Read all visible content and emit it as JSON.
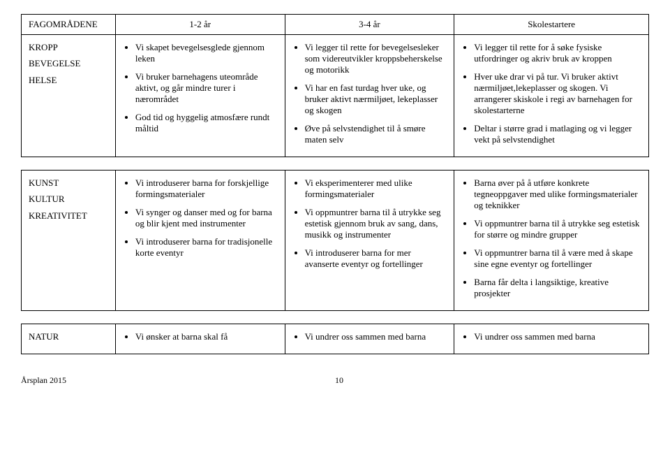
{
  "header": {
    "cat": "FAGOMRÅDENE",
    "colA": "1-2 år",
    "colB": "3-4 år",
    "colC": "Skolestartere"
  },
  "rows": [
    {
      "category_lines": [
        "KROPP",
        "BEVEGELSE",
        "HELSE"
      ],
      "colA": [
        "Vi skapet bevegelsesglede gjennom leken",
        "Vi bruker barnehagens uteområde aktivt, og går mindre turer i nærområdet",
        "God tid og hyggelig atmosfære rundt måltid"
      ],
      "colB": [
        "Vi legger til rette for bevegelsesleker som videreutvikler kroppsbeherskelse og motorikk",
        "Vi har en fast turdag hver uke, og bruker aktivt nærmiljøet, lekeplasser og skogen",
        "Øve på selvstendighet til å smøre maten selv"
      ],
      "colC": [
        "Vi legger til rette for å søke fysiske utfordringer og akriv bruk av kroppen",
        "Hver uke drar vi på tur. Vi bruker aktivt nærmiljøet,lekeplasser og skogen. Vi arrangerer skiskole i regi av barnehagen for skolestarterne",
        "Deltar i større grad i matlaging og vi legger vekt på selvstendighet"
      ]
    },
    {
      "category_lines": [
        "KUNST",
        "KULTUR",
        "KREATIVITET"
      ],
      "colA": [
        "Vi introduserer barna for forskjellige formingsmaterialer",
        "Vi synger og danser med og for barna og blir kjent med instrumenter",
        "Vi introduserer barna for tradisjonelle korte eventyr"
      ],
      "colB": [
        "Vi eksperimenterer med ulike formingsmaterialer",
        "Vi oppmuntrer barna til å utrykke seg estetisk gjennom bruk av sang, dans, musikk og instrumenter",
        "Vi introduserer barna for mer avanserte eventyr og fortellinger"
      ],
      "colC": [
        "Barna øver på å utføre konkrete tegneoppgaver med ulike formingsmaterialer og teknikker",
        "Vi oppmuntrer barna til å utrykke seg estetisk for større og mindre grupper",
        "Vi oppmuntrer barna til å være med å skape sine egne eventyr og fortellinger",
        "Barna får delta i langsiktige, kreative prosjekter"
      ]
    },
    {
      "category_lines": [
        "NATUR"
      ],
      "colA": [
        "Vi ønsker at barna skal få"
      ],
      "colB": [
        "Vi undrer oss sammen med barna"
      ],
      "colC": [
        "Vi undrer oss sammen med barna"
      ]
    }
  ],
  "footer": {
    "left": "Årsplan 2015",
    "page": "10"
  }
}
